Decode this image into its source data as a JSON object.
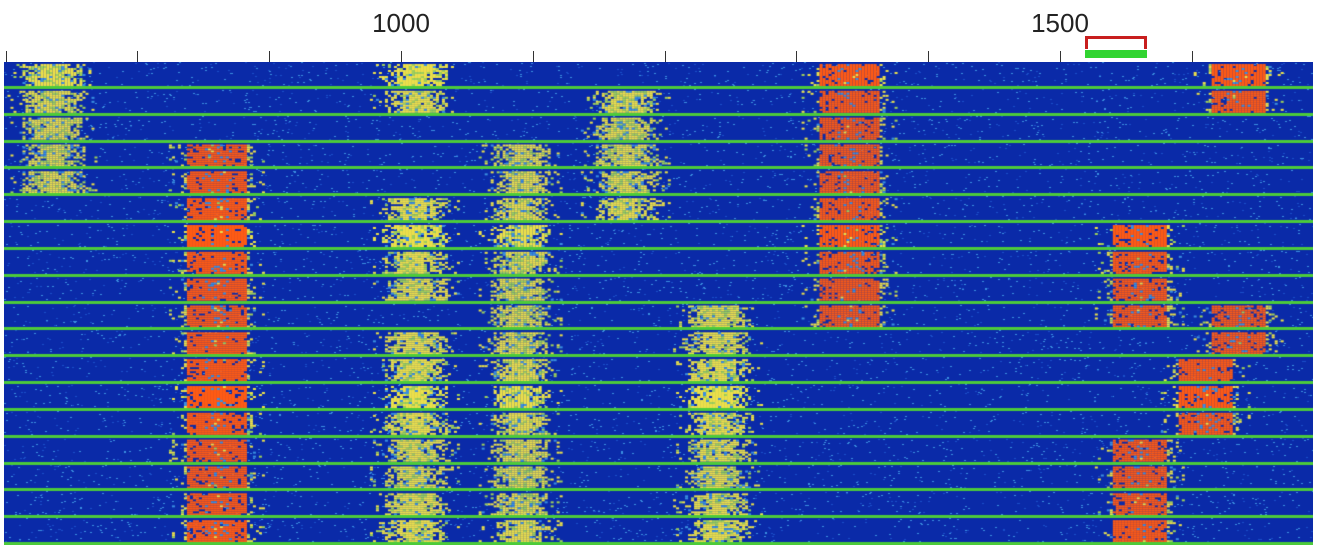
{
  "app": {
    "name": "waterfall-spectrum-display"
  },
  "ruler": {
    "unit": "Hz",
    "labels": [
      {
        "hz": 1000,
        "text": "1000"
      },
      {
        "hz": 1500,
        "text": "1500"
      }
    ],
    "minor_ticks_hz": [
      500,
      600,
      700,
      800,
      900,
      1000,
      1100,
      1200,
      1300,
      1400,
      1500,
      1600,
      1700
    ]
  },
  "markers": {
    "tx_color": "#c81e1e",
    "rx_color": "#31d431",
    "tx_hz": 1550,
    "rx_hz": 1550
  },
  "waterfall": {
    "freq_min_hz": 700,
    "freq_max_hz": 1690,
    "colors": {
      "background": "#0a2aa8",
      "noise": "#3a8fe0",
      "weak": "#ece04a",
      "strong": "#ff5a14",
      "separator": "#4ccb3a"
    },
    "rows": 18,
    "signals": [
      {
        "center_hz": 735,
        "width_hz": 55,
        "rows": [
          0,
          1,
          2,
          3,
          4
        ],
        "strength": "weak-strong"
      },
      {
        "center_hz": 860,
        "width_hz": 60,
        "rows": [
          3,
          4,
          5,
          6,
          7,
          8,
          9,
          10,
          11,
          12,
          13,
          14,
          15,
          16,
          17
        ],
        "strength": "strong"
      },
      {
        "center_hz": 1010,
        "width_hz": 55,
        "rows": [
          0,
          1,
          5,
          6,
          7,
          8,
          10,
          11,
          12,
          13,
          14,
          15,
          16,
          17
        ],
        "strength": "weak"
      },
      {
        "center_hz": 1090,
        "width_hz": 50,
        "rows": [
          3,
          4,
          5,
          6,
          7,
          8,
          9,
          10,
          11,
          12,
          13,
          14,
          15,
          16,
          17
        ],
        "strength": "weak"
      },
      {
        "center_hz": 1170,
        "width_hz": 55,
        "rows": [
          1,
          2,
          3,
          4,
          5
        ],
        "strength": "weak"
      },
      {
        "center_hz": 1240,
        "width_hz": 55,
        "rows": [
          9,
          10,
          11,
          12,
          13,
          14,
          15,
          16,
          17
        ],
        "strength": "weak"
      },
      {
        "center_hz": 1340,
        "width_hz": 60,
        "rows": [
          0,
          1,
          2,
          3,
          4,
          5,
          6,
          7,
          8,
          9
        ],
        "strength": "strong"
      },
      {
        "center_hz": 1560,
        "width_hz": 55,
        "rows": [
          6,
          7,
          8,
          9,
          14,
          15,
          16,
          17
        ],
        "strength": "strong"
      },
      {
        "center_hz": 1635,
        "width_hz": 55,
        "rows": [
          0,
          1,
          9,
          10
        ],
        "strength": "strong"
      },
      {
        "center_hz": 1610,
        "width_hz": 55,
        "rows": [
          11,
          12,
          13
        ],
        "strength": "strong"
      }
    ]
  }
}
